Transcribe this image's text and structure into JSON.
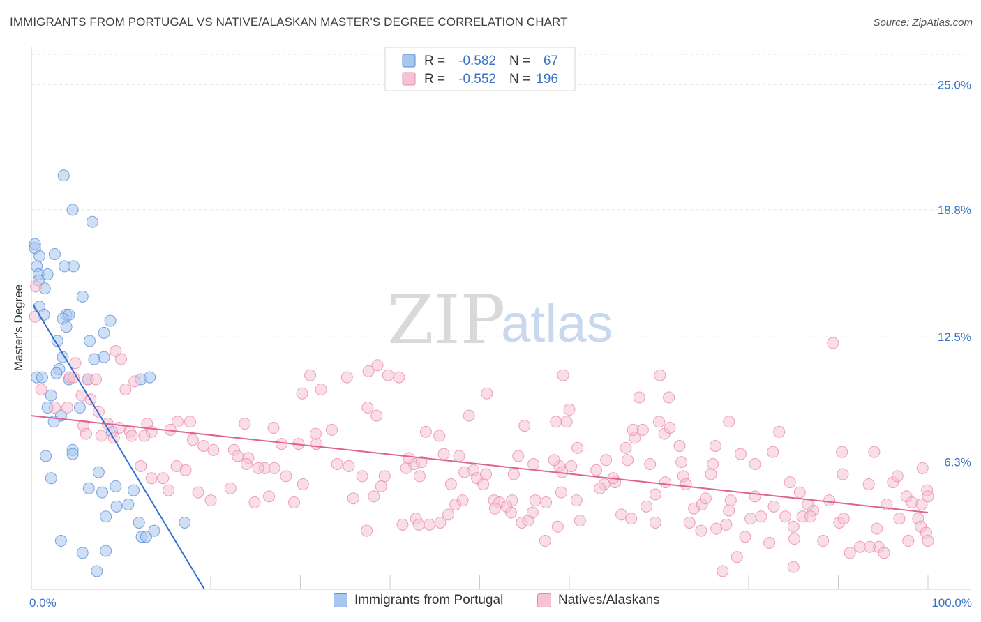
{
  "title": "IMMIGRANTS FROM PORTUGAL VS NATIVE/ALASKAN MASTER'S DEGREE CORRELATION CHART",
  "source": "Source: ZipAtlas.com",
  "watermark": {
    "zip": "ZIP",
    "atlas": "atlas"
  },
  "chart_data": {
    "type": "scatter",
    "title": "IMMIGRANTS FROM PORTUGAL VS NATIVE/ALASKAN MASTER'S DEGREE CORRELATION CHART",
    "xlabel": "",
    "ylabel": "Master's Degree",
    "xlim": [
      0,
      100
    ],
    "ylim": [
      0,
      26.5
    ],
    "x_tick_labels": [
      {
        "value": 0,
        "label": "0.0%"
      },
      {
        "value": 100,
        "label": "100.0%"
      }
    ],
    "y_tick_labels": [
      {
        "value": 6.3,
        "label": "6.3%"
      },
      {
        "value": 12.5,
        "label": "12.5%"
      },
      {
        "value": 18.8,
        "label": "18.8%"
      },
      {
        "value": 25.0,
        "label": "25.0%"
      }
    ],
    "legend_stats": [
      {
        "r_label": "R =",
        "r_value": "-0.582",
        "n_label": "N =",
        "n_value": "67"
      },
      {
        "r_label": "R =",
        "r_value": "-0.552",
        "n_label": "N =",
        "n_value": "196"
      }
    ],
    "series": [
      {
        "name": "Immigrants from Portugal",
        "color": "#5b8fd6",
        "fill": "#a8c6ee",
        "trend": {
          "x": [
            0.2,
            19.3
          ],
          "y": [
            14.1,
            0.0
          ],
          "color": "#2f6fd1"
        },
        "points": [
          [
            3.6,
            20.5
          ],
          [
            4.6,
            18.8
          ],
          [
            6.8,
            18.2
          ],
          [
            0.4,
            17.1
          ],
          [
            0.4,
            16.9
          ],
          [
            0.9,
            16.5
          ],
          [
            2.6,
            16.6
          ],
          [
            3.7,
            16.0
          ],
          [
            4.7,
            16.0
          ],
          [
            0.6,
            16.0
          ],
          [
            0.8,
            15.6
          ],
          [
            1.8,
            15.6
          ],
          [
            0.8,
            15.3
          ],
          [
            1.5,
            14.9
          ],
          [
            5.7,
            14.5
          ],
          [
            0.9,
            14.0
          ],
          [
            1.4,
            13.6
          ],
          [
            3.9,
            13.6
          ],
          [
            4.2,
            13.6
          ],
          [
            3.5,
            13.4
          ],
          [
            8.8,
            13.3
          ],
          [
            3.9,
            13.0
          ],
          [
            8.1,
            12.7
          ],
          [
            6.5,
            12.3
          ],
          [
            2.9,
            12.3
          ],
          [
            3.5,
            11.5
          ],
          [
            8.1,
            11.5
          ],
          [
            7.0,
            11.4
          ],
          [
            3.1,
            10.9
          ],
          [
            2.8,
            10.7
          ],
          [
            0.6,
            10.5
          ],
          [
            1.2,
            10.5
          ],
          [
            4.2,
            10.4
          ],
          [
            6.3,
            10.4
          ],
          [
            12.2,
            10.4
          ],
          [
            13.2,
            10.5
          ],
          [
            2.2,
            9.6
          ],
          [
            1.8,
            9.0
          ],
          [
            5.4,
            9.0
          ],
          [
            3.3,
            8.6
          ],
          [
            2.5,
            8.3
          ],
          [
            9.0,
            7.8
          ],
          [
            4.6,
            6.9
          ],
          [
            4.6,
            6.7
          ],
          [
            1.6,
            6.6
          ],
          [
            7.5,
            5.8
          ],
          [
            2.2,
            5.5
          ],
          [
            6.4,
            5.0
          ],
          [
            7.9,
            4.8
          ],
          [
            9.4,
            5.1
          ],
          [
            11.4,
            4.9
          ],
          [
            10.8,
            4.2
          ],
          [
            9.5,
            4.1
          ],
          [
            8.3,
            3.6
          ],
          [
            12.0,
            3.3
          ],
          [
            17.1,
            3.3
          ],
          [
            12.3,
            2.6
          ],
          [
            12.8,
            2.6
          ],
          [
            13.7,
            2.9
          ],
          [
            3.3,
            2.4
          ],
          [
            5.7,
            1.8
          ],
          [
            8.3,
            1.9
          ],
          [
            7.3,
            0.9
          ]
        ]
      },
      {
        "name": "Natives/Alaskans",
        "color": "#e88aa9",
        "fill": "#f6c3d4",
        "trend": {
          "x": [
            0,
            100
          ],
          "y": [
            8.6,
            3.8
          ],
          "color": "#e0628e"
        },
        "points": [
          [
            0.5,
            15.0
          ],
          [
            0.4,
            13.5
          ],
          [
            1.1,
            9.9
          ],
          [
            2.6,
            9.0
          ],
          [
            4.3,
            10.5
          ],
          [
            4.7,
            10.5
          ],
          [
            4.9,
            11.2
          ],
          [
            6.3,
            10.4
          ],
          [
            7.2,
            10.4
          ],
          [
            9.4,
            11.8
          ],
          [
            10.0,
            11.4
          ],
          [
            10.5,
            9.9
          ],
          [
            11.5,
            10.3
          ],
          [
            4.0,
            9.0
          ],
          [
            5.6,
            9.6
          ],
          [
            6.6,
            9.4
          ],
          [
            7.5,
            8.8
          ],
          [
            5.8,
            8.1
          ],
          [
            8.5,
            8.2
          ],
          [
            9.8,
            8.0
          ],
          [
            11.0,
            7.8
          ],
          [
            12.9,
            8.2
          ],
          [
            13.4,
            7.8
          ],
          [
            12.6,
            7.6
          ],
          [
            11.2,
            7.6
          ],
          [
            9.2,
            7.5
          ],
          [
            7.8,
            7.6
          ],
          [
            6.1,
            7.7
          ],
          [
            15.5,
            7.9
          ],
          [
            17.7,
            8.3
          ],
          [
            16.3,
            8.3
          ],
          [
            18.0,
            7.4
          ],
          [
            19.2,
            7.1
          ],
          [
            20.3,
            6.9
          ],
          [
            22.6,
            6.9
          ],
          [
            23.0,
            6.6
          ],
          [
            24.2,
            6.5
          ],
          [
            24.0,
            6.2
          ],
          [
            26.0,
            6.0
          ],
          [
            27.1,
            6.0
          ],
          [
            28.4,
            5.6
          ],
          [
            30.3,
            5.2
          ],
          [
            29.3,
            4.3
          ],
          [
            26.5,
            4.6
          ],
          [
            24.9,
            4.3
          ],
          [
            22.2,
            5.0
          ],
          [
            20.0,
            4.4
          ],
          [
            18.6,
            4.8
          ],
          [
            17.2,
            5.9
          ],
          [
            16.2,
            6.1
          ],
          [
            14.7,
            5.5
          ],
          [
            13.4,
            5.5
          ],
          [
            12.2,
            6.1
          ],
          [
            15.3,
            4.9
          ],
          [
            25.3,
            6.0
          ],
          [
            27.9,
            7.2
          ],
          [
            23.8,
            8.2
          ],
          [
            27.0,
            8.0
          ],
          [
            29.8,
            7.2
          ],
          [
            31.8,
            7.2
          ],
          [
            31.7,
            7.7
          ],
          [
            33.5,
            7.9
          ],
          [
            34.1,
            6.2
          ],
          [
            35.4,
            6.1
          ],
          [
            36.9,
            5.6
          ],
          [
            35.9,
            4.5
          ],
          [
            39.0,
            5.1
          ],
          [
            38.2,
            4.6
          ],
          [
            39.4,
            5.6
          ],
          [
            38.5,
            8.6
          ],
          [
            37.5,
            9.0
          ],
          [
            35.2,
            10.5
          ],
          [
            32.3,
            9.9
          ],
          [
            31.1,
            10.6
          ],
          [
            30.2,
            9.7
          ],
          [
            37.6,
            10.8
          ],
          [
            38.6,
            11.1
          ],
          [
            39.8,
            10.6
          ],
          [
            41.0,
            10.5
          ],
          [
            41.8,
            6.0
          ],
          [
            42.7,
            6.2
          ],
          [
            43.3,
            5.6
          ],
          [
            42.1,
            6.5
          ],
          [
            43.5,
            6.3
          ],
          [
            44.0,
            7.8
          ],
          [
            45.5,
            7.6
          ],
          [
            46.0,
            6.7
          ],
          [
            47.7,
            6.6
          ],
          [
            46.8,
            5.2
          ],
          [
            47.3,
            4.2
          ],
          [
            46.5,
            3.7
          ],
          [
            45.6,
            3.3
          ],
          [
            44.4,
            3.2
          ],
          [
            49.3,
            5.9
          ],
          [
            49.7,
            5.5
          ],
          [
            50.4,
            5.2
          ],
          [
            48.3,
            5.8
          ],
          [
            48.8,
            8.6
          ],
          [
            50.8,
            9.7
          ],
          [
            51.6,
            4.4
          ],
          [
            52.2,
            4.3
          ],
          [
            53.6,
            4.4
          ],
          [
            53.0,
            4.1
          ],
          [
            51.7,
            4.0
          ],
          [
            53.5,
            3.8
          ],
          [
            54.7,
            3.3
          ],
          [
            55.4,
            3.4
          ],
          [
            56.2,
            4.4
          ],
          [
            57.4,
            4.3
          ],
          [
            59.1,
            4.8
          ],
          [
            58.9,
            6.1
          ],
          [
            60.2,
            6.1
          ],
          [
            59.2,
            5.8
          ],
          [
            58.3,
            6.4
          ],
          [
            58.5,
            8.3
          ],
          [
            59.7,
            8.3
          ],
          [
            60.9,
            7.0
          ],
          [
            60.0,
            8.9
          ],
          [
            54.3,
            6.6
          ],
          [
            53.8,
            5.7
          ],
          [
            56.0,
            6.2
          ],
          [
            55.0,
            8.1
          ],
          [
            59.3,
            10.6
          ],
          [
            63.0,
            5.9
          ],
          [
            63.9,
            5.2
          ],
          [
            64.1,
            6.4
          ],
          [
            65.1,
            5.3
          ],
          [
            64.9,
            5.5
          ],
          [
            66.5,
            6.4
          ],
          [
            66.3,
            7.0
          ],
          [
            67.3,
            7.5
          ],
          [
            67.1,
            7.9
          ],
          [
            68.2,
            7.9
          ],
          [
            67.8,
            9.5
          ],
          [
            70.0,
            8.3
          ],
          [
            70.1,
            10.6
          ],
          [
            71.1,
            9.5
          ],
          [
            70.6,
            7.7
          ],
          [
            69.0,
            6.2
          ],
          [
            69.6,
            4.7
          ],
          [
            70.7,
            5.3
          ],
          [
            71.2,
            8.0
          ],
          [
            72.3,
            7.1
          ],
          [
            72.5,
            6.3
          ],
          [
            72.7,
            5.6
          ],
          [
            73.0,
            5.2
          ],
          [
            73.9,
            4.0
          ],
          [
            74.8,
            4.2
          ],
          [
            76.0,
            6.2
          ],
          [
            76.3,
            7.1
          ],
          [
            75.8,
            5.7
          ],
          [
            77.8,
            3.9
          ],
          [
            75.2,
            4.5
          ],
          [
            76.4,
            3.0
          ],
          [
            77.8,
            8.3
          ],
          [
            79.1,
            6.7
          ],
          [
            80.7,
            6.2
          ],
          [
            82.7,
            6.8
          ],
          [
            81.4,
            3.6
          ],
          [
            82.8,
            4.1
          ],
          [
            83.4,
            7.8
          ],
          [
            84.6,
            5.3
          ],
          [
            84.1,
            3.6
          ],
          [
            85.0,
            1.1
          ],
          [
            87.2,
            3.9
          ],
          [
            86.0,
            3.6
          ],
          [
            89.0,
            4.4
          ],
          [
            90.1,
            3.3
          ],
          [
            90.4,
            6.8
          ],
          [
            90.5,
            5.7
          ],
          [
            92.4,
            2.1
          ],
          [
            93.4,
            5.2
          ],
          [
            94.0,
            6.8
          ],
          [
            94.3,
            3.0
          ],
          [
            94.5,
            2.1
          ],
          [
            95.4,
            4.2
          ],
          [
            96.1,
            5.3
          ],
          [
            96.6,
            5.6
          ],
          [
            96.8,
            3.5
          ],
          [
            97.6,
            4.6
          ],
          [
            98.2,
            4.3
          ],
          [
            97.8,
            2.4
          ],
          [
            98.9,
            3.5
          ],
          [
            99.2,
            3.1
          ],
          [
            99.3,
            4.2
          ],
          [
            99.9,
            4.9
          ],
          [
            100.0,
            4.6
          ],
          [
            99.4,
            6.0
          ],
          [
            99.8,
            2.8
          ],
          [
            100.0,
            2.4
          ],
          [
            89.4,
            12.2
          ],
          [
            80.7,
            4.6
          ],
          [
            79.6,
            2.6
          ],
          [
            82.3,
            2.3
          ],
          [
            85.1,
            2.5
          ],
          [
            88.3,
            2.4
          ],
          [
            93.5,
            2.1
          ],
          [
            91.3,
            1.8
          ],
          [
            95.1,
            1.8
          ],
          [
            90.6,
            3.5
          ],
          [
            85.0,
            3.1
          ],
          [
            86.6,
            4.2
          ],
          [
            86.9,
            3.6
          ],
          [
            85.7,
            4.8
          ],
          [
            69.6,
            3.3
          ],
          [
            73.4,
            3.3
          ],
          [
            78.7,
            1.6
          ],
          [
            74.7,
            2.9
          ],
          [
            77.5,
            3.2
          ],
          [
            80.2,
            3.5
          ],
          [
            77.1,
            0.9
          ],
          [
            78.0,
            4.4
          ],
          [
            68.6,
            4.1
          ],
          [
            60.8,
            4.4
          ],
          [
            63.4,
            5.0
          ],
          [
            61.2,
            3.4
          ],
          [
            65.8,
            3.7
          ],
          [
            66.9,
            3.5
          ],
          [
            57.3,
            2.4
          ],
          [
            55.9,
            3.8
          ],
          [
            50.7,
            5.7
          ],
          [
            48.1,
            4.4
          ],
          [
            42.9,
            3.5
          ],
          [
            43.2,
            3.2
          ],
          [
            41.4,
            3.2
          ],
          [
            37.4,
            2.9
          ],
          [
            58.7,
            3.1
          ]
        ]
      }
    ]
  }
}
